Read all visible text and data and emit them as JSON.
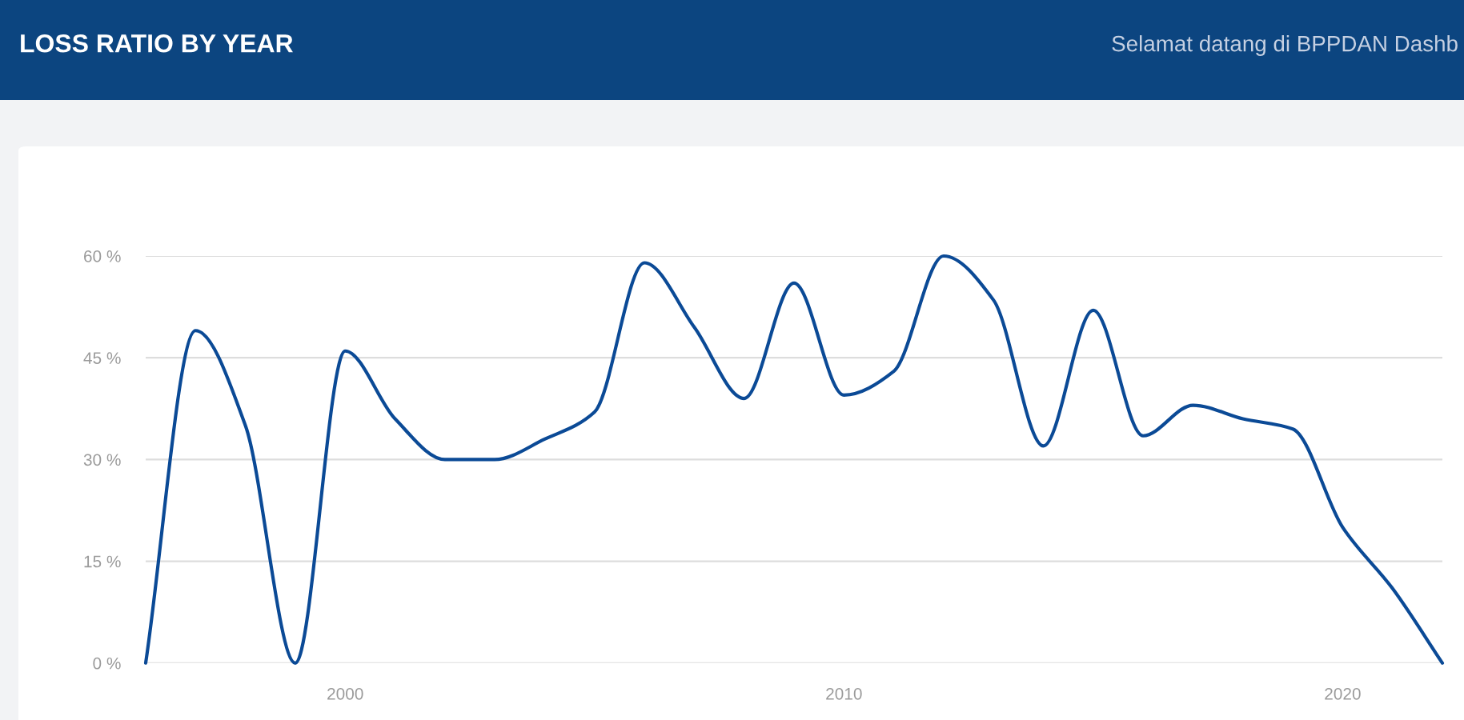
{
  "chart_data": {
    "type": "line",
    "title": "LOSS RATIO BY YEAR",
    "subtitle": "Selamat datang di BPPDAN Dashb",
    "x": [
      1996,
      1997,
      1998,
      1999,
      2000,
      2001,
      2002,
      2003,
      2004,
      2005,
      2006,
      2007,
      2008,
      2009,
      2010,
      2011,
      2012,
      2013,
      2014,
      2015,
      2016,
      2017,
      2018,
      2019,
      2020,
      2021,
      2022
    ],
    "series": [
      {
        "color": "#0b4a96",
        "values": [
          0,
          49,
          35,
          0,
          46,
          36,
          30,
          30,
          33,
          37,
          59,
          49.5,
          39,
          56,
          39.5,
          43,
          60,
          53.5,
          32,
          52,
          33.5,
          38,
          36,
          34.5,
          20,
          11,
          0
        ]
      }
    ],
    "xlim": [
      1996,
      2022
    ],
    "xticks": [
      2000,
      2010,
      2020
    ],
    "ylim": [
      0,
      60
    ],
    "yticks": [
      {
        "value": 0,
        "label": "0 %"
      },
      {
        "value": 15,
        "label": "15 %"
      },
      {
        "value": 30,
        "label": "30 %"
      },
      {
        "value": 45,
        "label": "45 %"
      },
      {
        "value": 60,
        "label": "60 %"
      }
    ],
    "grid": "y",
    "marker": "none",
    "line_style": "solid"
  }
}
